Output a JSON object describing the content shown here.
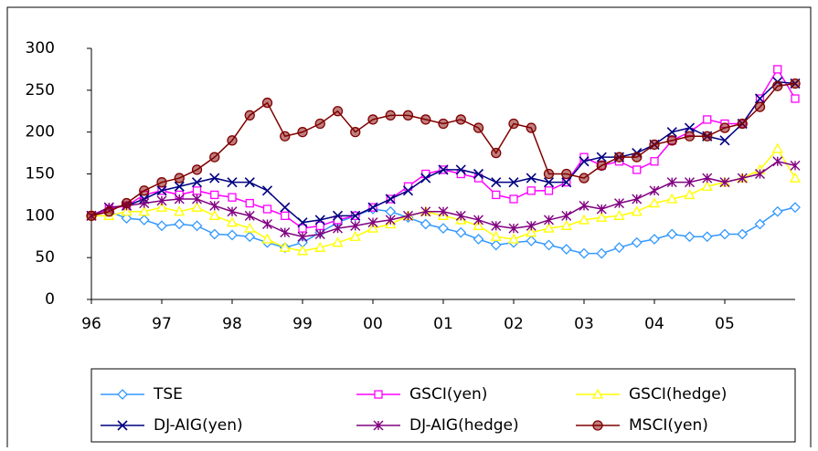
{
  "chart_data": {
    "type": "line",
    "x": [
      1996,
      1996.25,
      1996.5,
      1996.75,
      1997,
      1997.25,
      1997.5,
      1997.75,
      1998,
      1998.25,
      1998.5,
      1998.75,
      1999,
      1999.25,
      1999.5,
      1999.75,
      2000,
      2000.25,
      2000.5,
      2000.75,
      2001,
      2001.25,
      2001.5,
      2001.75,
      2002,
      2002.25,
      2002.5,
      2002.75,
      2003,
      2003.25,
      2003.5,
      2003.75,
      2004,
      2004.25,
      2004.5,
      2004.75,
      2005,
      2005.25,
      2005.5,
      2005.75,
      2006
    ],
    "xlim": [
      1996,
      2006
    ],
    "xticks": [
      {
        "value": 1996,
        "label": "96"
      },
      {
        "value": 1997,
        "label": "97"
      },
      {
        "value": 1998,
        "label": "98"
      },
      {
        "value": 1999,
        "label": "99"
      },
      {
        "value": 2000,
        "label": "00"
      },
      {
        "value": 2001,
        "label": "01"
      },
      {
        "value": 2002,
        "label": "02"
      },
      {
        "value": 2003,
        "label": "03"
      },
      {
        "value": 2004,
        "label": "04"
      },
      {
        "value": 2005,
        "label": "05"
      }
    ],
    "ylim": [
      0,
      300
    ],
    "yticks": [
      0,
      50,
      100,
      150,
      200,
      250,
      300
    ],
    "series": [
      {
        "name": "TSE",
        "color": "#3399ff",
        "marker": "diamond",
        "values": [
          100,
          105,
          97,
          95,
          88,
          90,
          88,
          78,
          77,
          75,
          68,
          62,
          68,
          80,
          92,
          100,
          108,
          105,
          98,
          90,
          85,
          80,
          72,
          65,
          68,
          70,
          65,
          60,
          55,
          55,
          62,
          68,
          72,
          78,
          75,
          75,
          78,
          78,
          90,
          105,
          110
        ]
      },
      {
        "name": "GSCI(yen)",
        "color": "#ff00ff",
        "marker": "square",
        "values": [
          100,
          108,
          112,
          125,
          130,
          125,
          130,
          125,
          122,
          115,
          108,
          100,
          85,
          88,
          95,
          100,
          110,
          120,
          135,
          150,
          155,
          150,
          145,
          125,
          120,
          130,
          130,
          140,
          170,
          160,
          165,
          155,
          165,
          190,
          200,
          215,
          210,
          210,
          240,
          275,
          240
        ]
      },
      {
        "name": "GSCI(hedge)",
        "color": "#ffff00",
        "marker": "triangle",
        "values": [
          100,
          100,
          105,
          105,
          110,
          105,
          110,
          100,
          92,
          85,
          72,
          62,
          58,
          62,
          68,
          75,
          85,
          90,
          100,
          105,
          100,
          95,
          88,
          75,
          72,
          80,
          85,
          88,
          95,
          98,
          100,
          105,
          115,
          120,
          125,
          135,
          140,
          145,
          155,
          180,
          145
        ]
      },
      {
        "name": "DJ-AIG(yen)",
        "color": "#000080",
        "marker": "x",
        "values": [
          100,
          110,
          112,
          120,
          130,
          135,
          140,
          145,
          140,
          140,
          130,
          110,
          92,
          95,
          100,
          100,
          110,
          120,
          130,
          145,
          155,
          155,
          150,
          140,
          140,
          145,
          140,
          140,
          165,
          170,
          170,
          175,
          185,
          200,
          205,
          195,
          190,
          210,
          240,
          260,
          258
        ]
      },
      {
        "name": "DJ-AIG(hedge)",
        "color": "#800080",
        "marker": "asterisk",
        "values": [
          100,
          110,
          112,
          115,
          118,
          120,
          120,
          112,
          105,
          100,
          90,
          80,
          75,
          78,
          85,
          88,
          92,
          95,
          100,
          105,
          105,
          100,
          95,
          88,
          85,
          88,
          95,
          100,
          112,
          108,
          115,
          120,
          130,
          140,
          140,
          145,
          140,
          145,
          150,
          165,
          160
        ]
      },
      {
        "name": "MSCI(yen)",
        "color": "#800000",
        "marker": "circle",
        "values": [
          100,
          105,
          115,
          130,
          140,
          145,
          155,
          170,
          190,
          220,
          235,
          195,
          200,
          210,
          225,
          200,
          215,
          220,
          220,
          215,
          210,
          215,
          205,
          175,
          210,
          205,
          150,
          150,
          145,
          160,
          170,
          170,
          185,
          190,
          195,
          195,
          205,
          210,
          230,
          255,
          258
        ]
      }
    ]
  }
}
